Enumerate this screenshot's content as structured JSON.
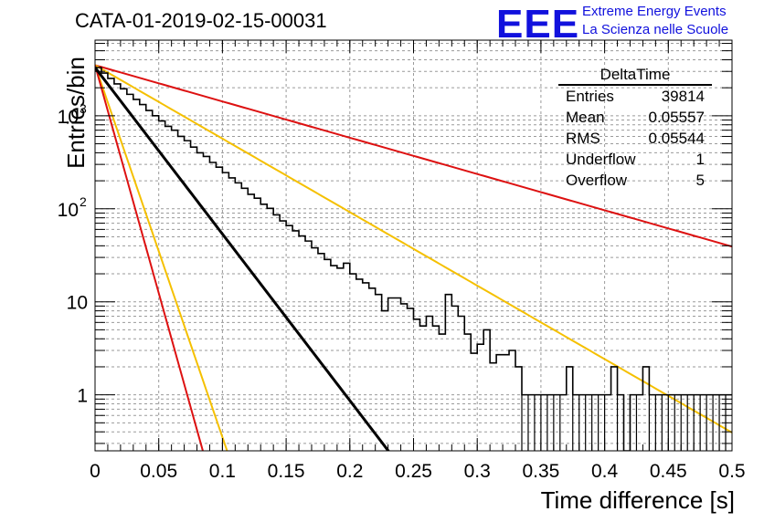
{
  "title": "CATA-01-2019-02-15-00031",
  "logo": {
    "mark": "EEE",
    "line1": "Extreme Energy Events",
    "line2": "La Scienza nelle Scuole",
    "color": "#1111dd"
  },
  "stats_box": {
    "title": "DeltaTime",
    "rows": [
      {
        "label": "Entries",
        "value": "39814"
      },
      {
        "label": "Mean",
        "value": "0.05557"
      },
      {
        "label": "RMS",
        "value": "0.05544"
      },
      {
        "label": "Underflow",
        "value": "1"
      },
      {
        "label": "Overflow",
        "value": "5"
      }
    ]
  },
  "chart_data": {
    "type": "histogram",
    "xlabel": "Time difference [s]",
    "ylabel": "Entries/bin",
    "xlim": [
      0,
      0.5
    ],
    "ylim": [
      0.25,
      6500
    ],
    "yscale": "log",
    "grid": true,
    "x_ticks": [
      "0",
      "0.05",
      "0.1",
      "0.15",
      "0.2",
      "0.25",
      "0.3",
      "0.35",
      "0.4",
      "0.45",
      "0.5"
    ],
    "y_ticks": [
      {
        "value": 1,
        "label": "1"
      },
      {
        "value": 10,
        "label": "10"
      },
      {
        "value": 100,
        "label": "10",
        "exp": "2"
      },
      {
        "value": 1000,
        "label": "10",
        "exp": "3"
      }
    ],
    "histogram": {
      "bin_width": 0.005,
      "x_start": 0,
      "counts": [
        3300,
        2880,
        2520,
        2200,
        1950,
        1700,
        1500,
        1320,
        1140,
        1000,
        880,
        770,
        700,
        600,
        540,
        460,
        400,
        365,
        315,
        280,
        245,
        215,
        190,
        166,
        143,
        130,
        112,
        101,
        86,
        74,
        66,
        58,
        51,
        45,
        38,
        33,
        28.5,
        24.5,
        23,
        26,
        20,
        17.5,
        16,
        14,
        12,
        8,
        11,
        11,
        9.5,
        8.5,
        6.5,
        5.5,
        7,
        5.5,
        4.5,
        12,
        9,
        7,
        4.5,
        2.8,
        3.5,
        5,
        2.2,
        2.7,
        2.7,
        3,
        2,
        1,
        1,
        1,
        1,
        1,
        1,
        1,
        2,
        1,
        1,
        1,
        1,
        1,
        1,
        2,
        1,
        0.25,
        1,
        1,
        2,
        1,
        1,
        1,
        1,
        1,
        1,
        1,
        1,
        1,
        1,
        1,
        1,
        1
      ],
      "color": "#000000"
    },
    "fit": {
      "label": "black fit",
      "y0": 3300,
      "slope_per_s": -17.9,
      "color": "#000000"
    },
    "series": [
      {
        "y0": 3500,
        "slope_per_s": -3.9,
        "color": "#dd1111"
      },
      {
        "y0": 3500,
        "slope_per_s": -7.9,
        "color": "#f5c000"
      },
      {
        "y0": 3500,
        "slope_per_s": -40.0,
        "color": "#f5c000"
      },
      {
        "y0": 3500,
        "slope_per_s": -49.0,
        "color": "#dd1111"
      }
    ]
  }
}
